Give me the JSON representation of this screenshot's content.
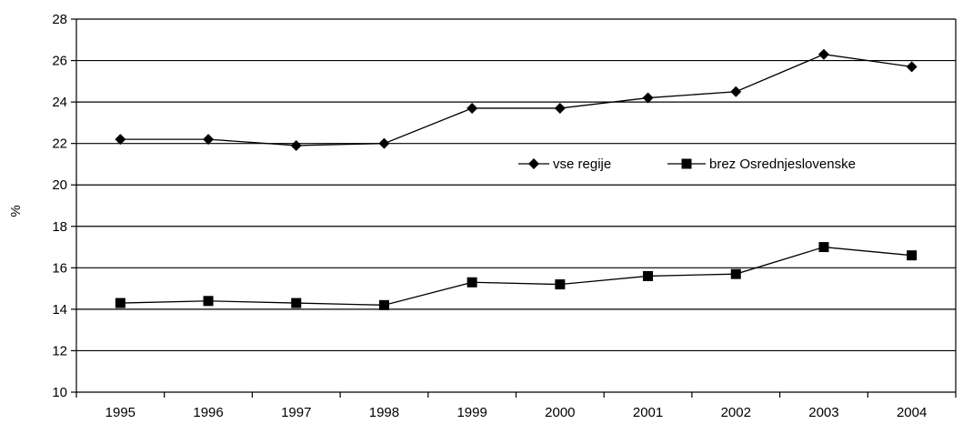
{
  "chart_data": {
    "type": "line",
    "title": "",
    "xlabel": "",
    "ylabel": "%",
    "ylim": [
      10,
      28
    ],
    "yticks": [
      10,
      12,
      14,
      16,
      18,
      20,
      22,
      24,
      26,
      28
    ],
    "grid": true,
    "legend_position": "right",
    "categories": [
      "1995",
      "1996",
      "1997",
      "1998",
      "1999",
      "2000",
      "2001",
      "2002",
      "2003",
      "2004"
    ],
    "series": [
      {
        "name": "vse regije",
        "marker": "diamond",
        "color": "#000000",
        "values": [
          22.2,
          22.2,
          21.9,
          22.0,
          23.7,
          23.7,
          24.2,
          24.5,
          26.3,
          25.7
        ]
      },
      {
        "name": "brez Osrednjeslovenske",
        "marker": "square",
        "color": "#000000",
        "values": [
          14.3,
          14.4,
          14.3,
          14.2,
          15.3,
          15.2,
          15.6,
          15.7,
          17.0,
          16.6
        ]
      }
    ]
  }
}
